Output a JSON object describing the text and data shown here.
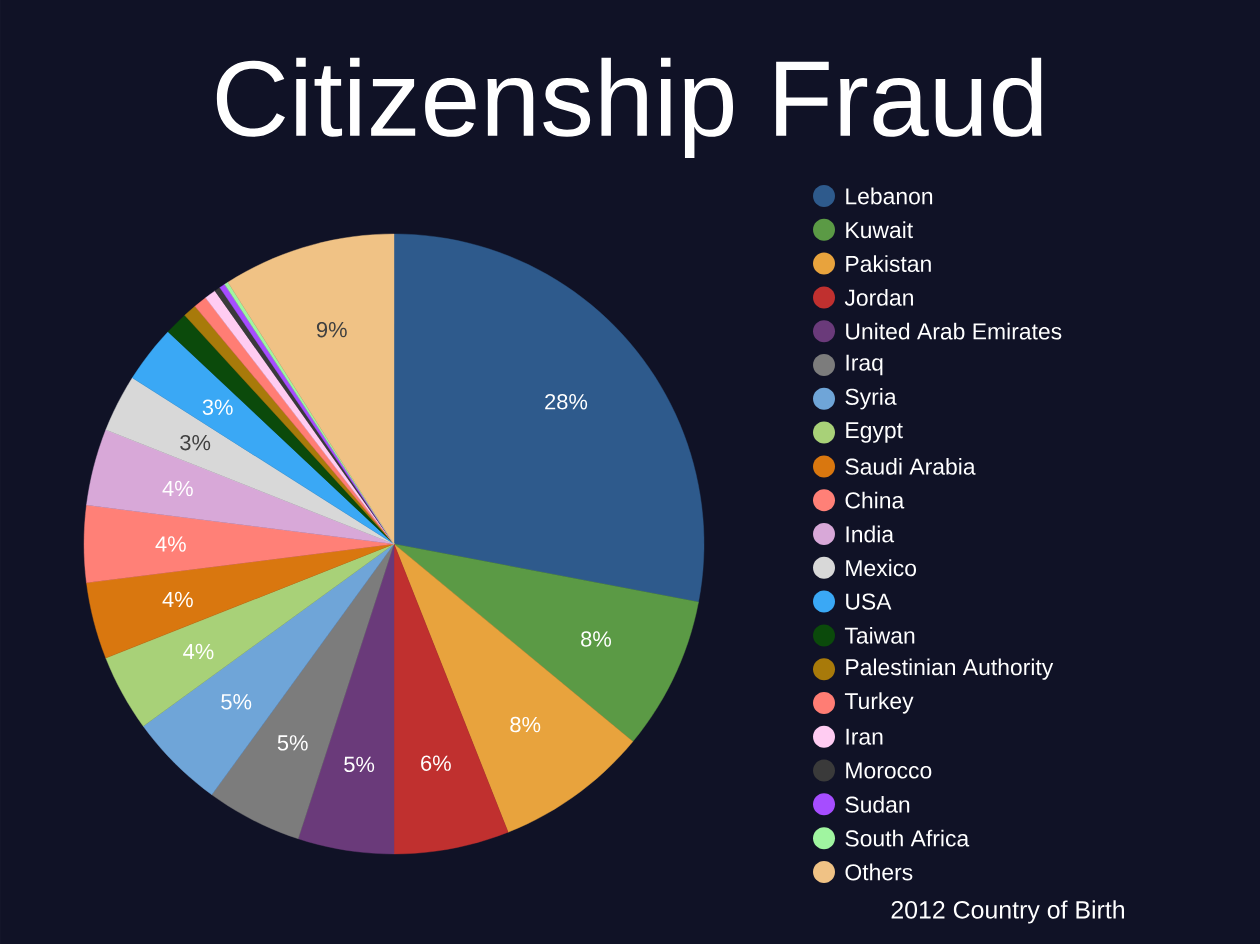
{
  "chart_data": {
    "type": "pie",
    "title": "Citizenship Fraud",
    "categories": [
      "Lebanon",
      "Kuwait",
      "Pakistan",
      "Jordan",
      "United Arab Emirates",
      "Iraq",
      "Syria",
      "Egypt",
      "Saudi Arabia",
      "China",
      "India",
      "Mexico",
      "USA",
      "Taiwan",
      "Palestinian Authority",
      "Turkey",
      "Iran",
      "Morocco",
      "Sudan",
      "South Africa",
      "Others"
    ],
    "values": [
      28,
      8,
      8,
      6,
      5,
      5,
      5,
      4,
      4,
      4,
      4,
      3,
      3,
      1.2,
      0.7,
      0.7,
      0.6,
      0.3,
      0.3,
      0.2,
      9
    ],
    "value_labels": [
      "28%",
      "8%",
      "8%",
      "6%",
      "5%",
      "5%",
      "5%",
      "4%",
      "4%",
      "4%",
      "4%",
      "3%",
      "3%",
      null,
      null,
      null,
      null,
      null,
      null,
      null,
      "9%"
    ],
    "colors": [
      "#2e5a8c",
      "#5b9a45",
      "#e8a33d",
      "#c0302f",
      "#6a3a7a",
      "#7c7c7c",
      "#6fa5d8",
      "#a8d178",
      "#d9770f",
      "#ff8077",
      "#d8a8d8",
      "#d8d8d8",
      "#3aa8f5",
      "#0b4a0b",
      "#a87a0a",
      "#ff7d74",
      "#ffccf2",
      "#3a3a3a",
      "#a64dff",
      "#a0f5a0",
      "#f0c285"
    ],
    "legend": "right",
    "annotations": [
      "2012 Country of Birth"
    ]
  }
}
